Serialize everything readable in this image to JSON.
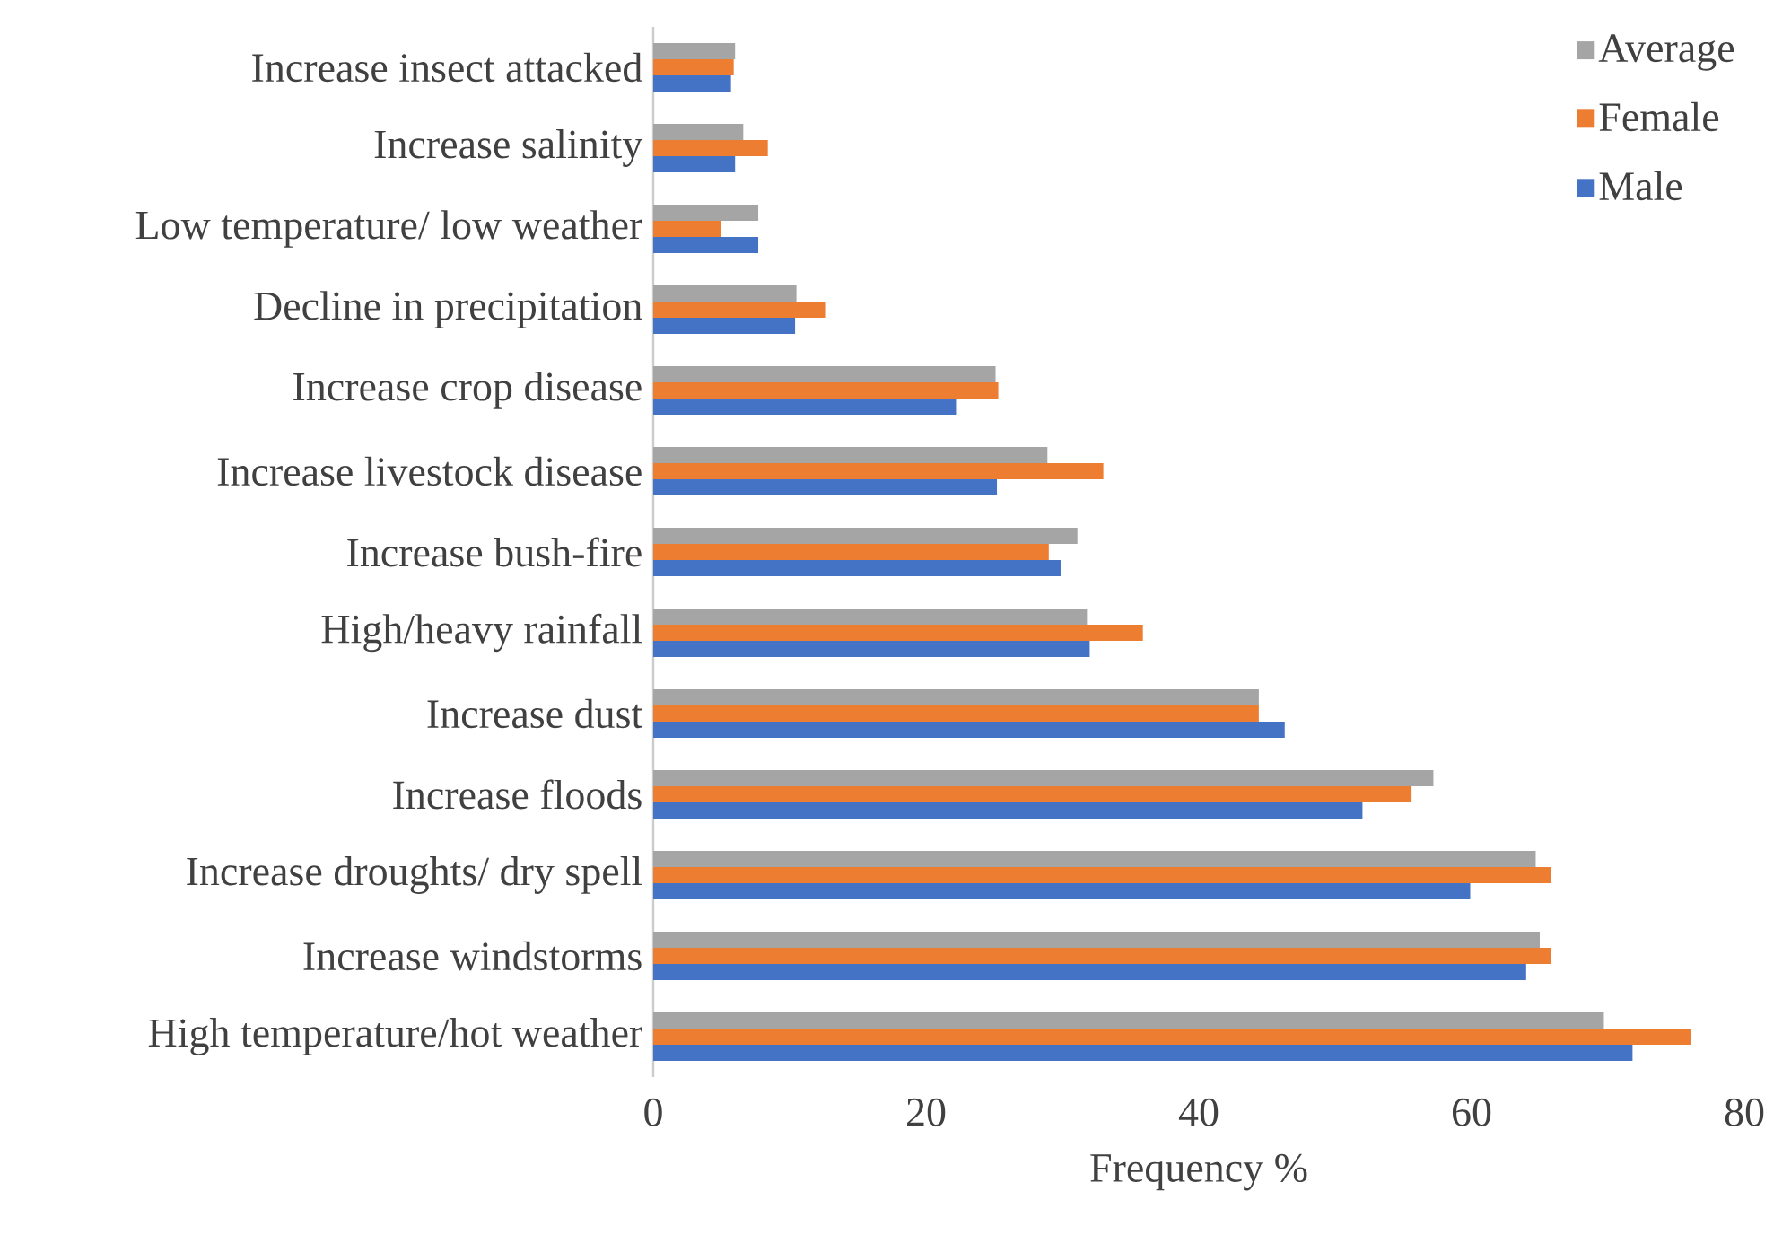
{
  "chart_data": {
    "type": "bar",
    "orientation": "horizontal",
    "xlabel": "Frequency %",
    "categories": [
      "Increase insect attacked",
      "Increase salinity",
      "Low temperature/ low weather",
      "Decline in precipitation",
      "Increase crop disease",
      "Increase livestock disease",
      "Increase bush-fire",
      "High/heavy rainfall",
      "Increase dust",
      "Increase floods",
      "Increase droughts/ dry spell",
      "Increase windstorms",
      "High temperature/hot weather"
    ],
    "series": [
      {
        "name": "Average",
        "color": "#a5a5a5",
        "values": [
          6.0,
          6.6,
          7.7,
          10.5,
          25.1,
          28.9,
          31.1,
          31.8,
          44.4,
          57.2,
          64.7,
          65.0,
          69.7
        ]
      },
      {
        "name": "Female",
        "color": "#ed7d31",
        "values": [
          5.9,
          8.4,
          5.0,
          12.6,
          25.3,
          33.0,
          29.0,
          35.9,
          44.4,
          55.6,
          65.8,
          65.8,
          76.1
        ]
      },
      {
        "name": "Male",
        "color": "#4472c4",
        "values": [
          5.7,
          6.0,
          7.7,
          10.4,
          22.2,
          25.2,
          29.9,
          32.0,
          46.3,
          52.0,
          59.9,
          64.0,
          71.8
        ]
      }
    ],
    "xlim": [
      0,
      80
    ],
    "xticks": [
      0,
      20,
      40,
      60,
      80
    ],
    "legend": "top right"
  }
}
